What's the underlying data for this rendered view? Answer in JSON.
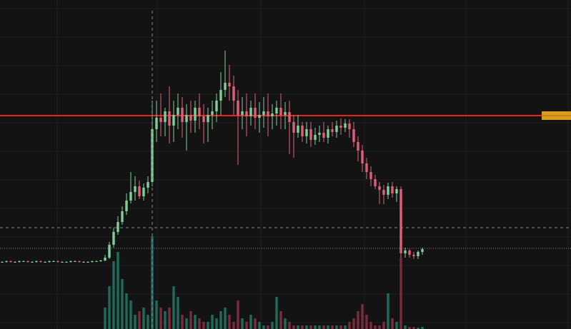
{
  "chart_data": {
    "type": "candlestick",
    "open": [
      94,
      94,
      95,
      94,
      94,
      95,
      95,
      94,
      94,
      95,
      94,
      94,
      95,
      95,
      94,
      94,
      94,
      95,
      95,
      94,
      94,
      94,
      95,
      95,
      96,
      100,
      118,
      136,
      150,
      165,
      180,
      192,
      200,
      186,
      198,
      206,
      280,
      296,
      290,
      305,
      285,
      300,
      310,
      290,
      300,
      292,
      310,
      298,
      290,
      300,
      305,
      320,
      335,
      345,
      340,
      320,
      300,
      305,
      298,
      310,
      296,
      300,
      305,
      298,
      302,
      310,
      300,
      304,
      290,
      275,
      285,
      270,
      280,
      265,
      272,
      275,
      268,
      280,
      276,
      285,
      282,
      288,
      280,
      262,
      250,
      232,
      220,
      210,
      200,
      195,
      188,
      200,
      190,
      196,
      106,
      110,
      104,
      102,
      108
    ],
    "high": [
      95,
      96,
      96,
      95,
      96,
      96,
      96,
      95,
      96,
      96,
      95,
      96,
      96,
      96,
      95,
      95,
      96,
      96,
      96,
      95,
      95,
      96,
      96,
      97,
      104,
      122,
      142,
      158,
      172,
      190,
      220,
      214,
      208,
      204,
      214,
      320,
      320,
      330,
      310,
      340,
      320,
      330,
      325,
      315,
      320,
      320,
      330,
      315,
      310,
      320,
      330,
      360,
      390,
      370,
      355,
      335,
      325,
      330,
      320,
      330,
      318,
      325,
      330,
      315,
      320,
      330,
      318,
      320,
      300,
      300,
      290,
      290,
      290,
      282,
      285,
      290,
      285,
      290,
      292,
      295,
      294,
      294,
      290,
      270,
      258,
      240,
      228,
      216,
      206,
      202,
      205,
      206,
      200,
      200,
      114,
      112,
      108,
      110,
      114
    ],
    "low": [
      93,
      93,
      93,
      93,
      93,
      94,
      93,
      93,
      93,
      93,
      93,
      93,
      94,
      93,
      93,
      93,
      93,
      94,
      93,
      93,
      93,
      93,
      94,
      94,
      95,
      98,
      114,
      132,
      146,
      160,
      176,
      180,
      182,
      180,
      190,
      200,
      262,
      270,
      270,
      260,
      262,
      280,
      268,
      250,
      275,
      275,
      280,
      260,
      262,
      280,
      290,
      300,
      325,
      320,
      300,
      230,
      280,
      270,
      285,
      280,
      275,
      282,
      270,
      280,
      285,
      280,
      280,
      245,
      240,
      268,
      262,
      260,
      255,
      258,
      262,
      262,
      260,
      270,
      268,
      272,
      276,
      268,
      255,
      235,
      220,
      210,
      200,
      196,
      175,
      175,
      182,
      184,
      178,
      100,
      100,
      100,
      98,
      98,
      104
    ],
    "close": [
      94,
      95,
      94,
      94,
      95,
      95,
      94,
      94,
      95,
      94,
      94,
      95,
      95,
      94,
      94,
      94,
      95,
      95,
      94,
      94,
      94,
      95,
      95,
      96,
      100,
      118,
      136,
      150,
      165,
      180,
      192,
      200,
      186,
      198,
      206,
      280,
      296,
      290,
      305,
      285,
      300,
      310,
      290,
      300,
      292,
      310,
      298,
      290,
      300,
      305,
      320,
      335,
      345,
      340,
      320,
      300,
      305,
      298,
      310,
      296,
      300,
      305,
      298,
      302,
      310,
      300,
      304,
      290,
      275,
      285,
      270,
      280,
      265,
      272,
      275,
      268,
      280,
      276,
      285,
      282,
      288,
      280,
      262,
      250,
      232,
      220,
      210,
      200,
      195,
      188,
      200,
      190,
      196,
      106,
      110,
      104,
      102,
      108,
      112
    ],
    "volume": [
      0,
      0,
      0,
      0,
      0,
      0,
      0,
      0,
      0,
      0,
      0,
      0,
      0,
      0,
      0,
      0,
      0,
      0,
      0,
      0,
      0,
      0,
      0,
      0,
      30,
      60,
      95,
      108,
      70,
      50,
      40,
      20,
      25,
      30,
      20,
      130,
      40,
      30,
      25,
      30,
      60,
      45,
      20,
      15,
      25,
      20,
      15,
      10,
      10,
      20,
      15,
      25,
      30,
      20,
      10,
      40,
      15,
      10,
      20,
      15,
      10,
      5,
      5,
      10,
      45,
      25,
      15,
      10,
      5,
      5,
      5,
      5,
      5,
      5,
      5,
      5,
      5,
      5,
      5,
      5,
      5,
      10,
      15,
      25,
      35,
      20,
      10,
      5,
      5,
      10,
      50,
      15,
      10,
      100,
      5,
      3,
      3,
      2,
      3
    ],
    "up_color": "#7fcf9b",
    "down_color": "#e0607c",
    "volume_up_color": "#1f6b5a",
    "volume_down_color": "#7a2c3c",
    "ylim": [
      0,
      461
    ],
    "y2lim": [
      0,
      461
    ],
    "price_line": 299,
    "price_line_color": "#e8231d",
    "dashed_line": 142,
    "dotted_line": 113
  }
}
